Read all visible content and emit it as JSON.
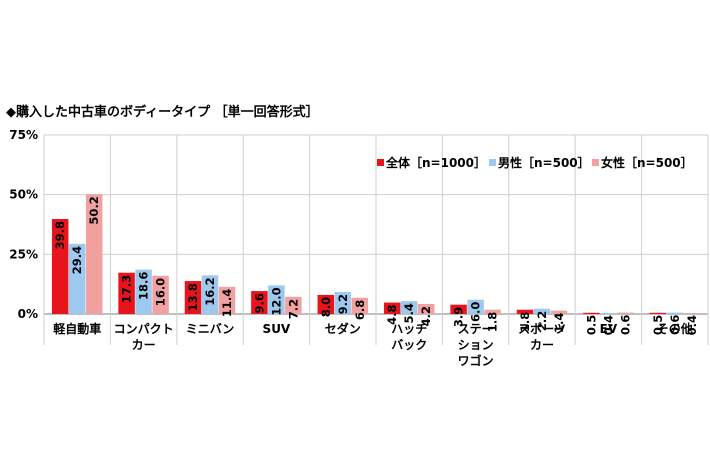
{
  "chart_data": {
    "type": "bar",
    "title": "◆購入した中古車のボディータイプ ［単一回答形式］",
    "unit": "%",
    "ylim": [
      0,
      75
    ],
    "yticks": [
      "0%",
      "25%",
      "50%",
      "75%"
    ],
    "ytick_values": [
      0,
      25,
      50,
      75
    ],
    "legend_position": "top-right",
    "categories": [
      [
        "軽自動車"
      ],
      [
        "コンパクト",
        "カー"
      ],
      [
        "ミニバン"
      ],
      [
        "SUV"
      ],
      [
        "セダン"
      ],
      [
        "ハッチ",
        "バック"
      ],
      [
        "ステー",
        "ション",
        "ワゴン"
      ],
      [
        "スポーツ",
        "カー"
      ],
      [
        "EV"
      ],
      [
        "その他"
      ]
    ],
    "series": [
      {
        "name": "全体［n=1000］",
        "color": "#e8141b",
        "values": [
          39.8,
          17.3,
          13.8,
          9.6,
          8.0,
          4.8,
          3.9,
          1.8,
          0.5,
          0.5
        ]
      },
      {
        "name": "男性［n=500］",
        "color": "#9ec9ef",
        "values": [
          29.4,
          18.6,
          16.2,
          12.0,
          9.2,
          5.4,
          6.0,
          2.2,
          0.4,
          0.6
        ]
      },
      {
        "name": "女性［n=500］",
        "color": "#f2a1a1",
        "values": [
          50.2,
          16.0,
          11.4,
          7.2,
          6.8,
          4.2,
          1.8,
          1.4,
          0.6,
          0.4
        ]
      }
    ]
  }
}
